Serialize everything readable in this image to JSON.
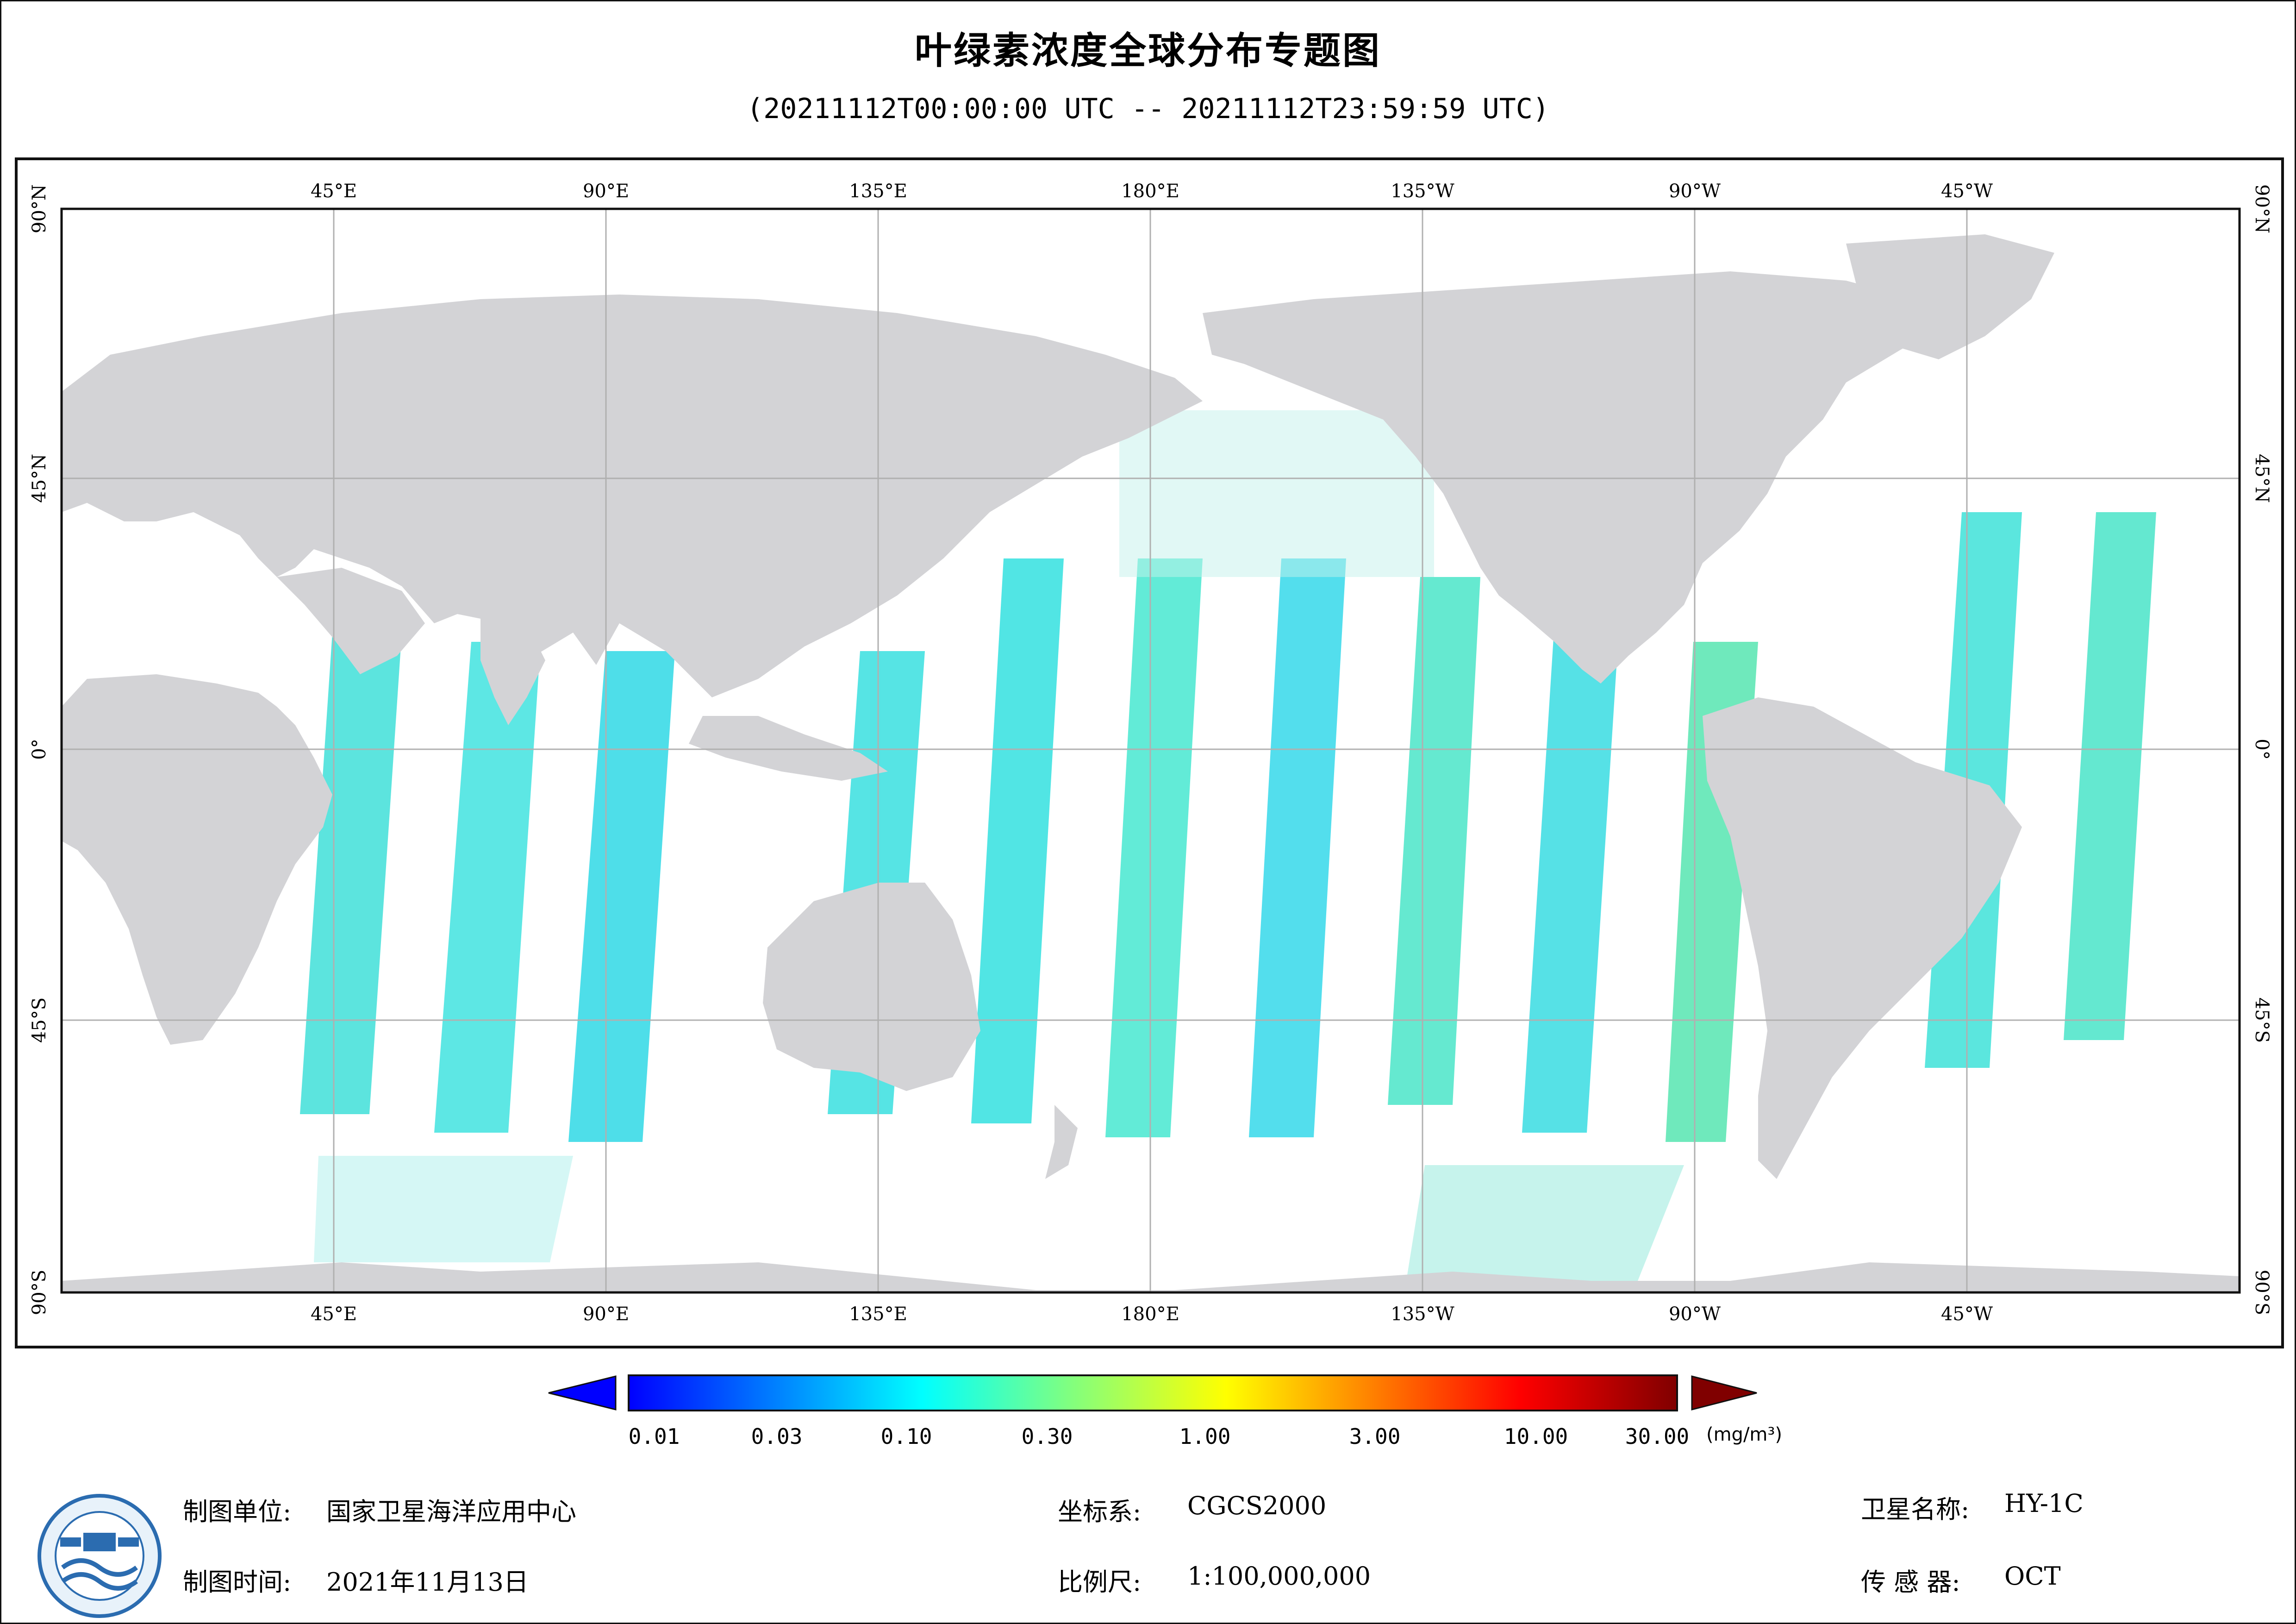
{
  "title": "叶绿素浓度全球分布专题图",
  "subtitle": "(20211112T00:00:00 UTC -- 20211112T23:59:59 UTC)",
  "map": {
    "top_lon_labels": [
      "45°E",
      "90°E",
      "135°E",
      "180°E",
      "135°W",
      "90°W",
      "45°W"
    ],
    "lat_labels": [
      "90°N",
      "45°N",
      "0°",
      "45°S",
      "90°S"
    ],
    "colors": {
      "land": "#d3d3d6",
      "ocean_nodata": "#ffffff",
      "grid": "#b0b0b0"
    }
  },
  "legend": {
    "tick_labels": [
      "0.01",
      "0.03",
      "0.10",
      "0.30",
      "1.00",
      "3.00",
      "10.00",
      "30.00"
    ],
    "unit": "(mg/m³)",
    "colors": [
      "#0000ff",
      "#0080ff",
      "#00ffff",
      "#80ff80",
      "#ffff00",
      "#ff8000",
      "#ff0000",
      "#800000"
    ]
  },
  "footer": {
    "unit_label": "制图单位:",
    "unit_value": "国家卫星海洋应用中心",
    "time_label": "制图时间:",
    "time_value": "2021年11月13日",
    "crs_label": "坐标系:",
    "crs_value": "CGCS2000",
    "scale_label": "比例尺:",
    "scale_value": "1:100,000,000",
    "satellite_label": "卫星名称:",
    "satellite_value": "HY-1C",
    "sensor_label": "传 感 器:",
    "sensor_value": "OCT"
  },
  "logo": {
    "icon": "nsoas-logo-icon"
  }
}
